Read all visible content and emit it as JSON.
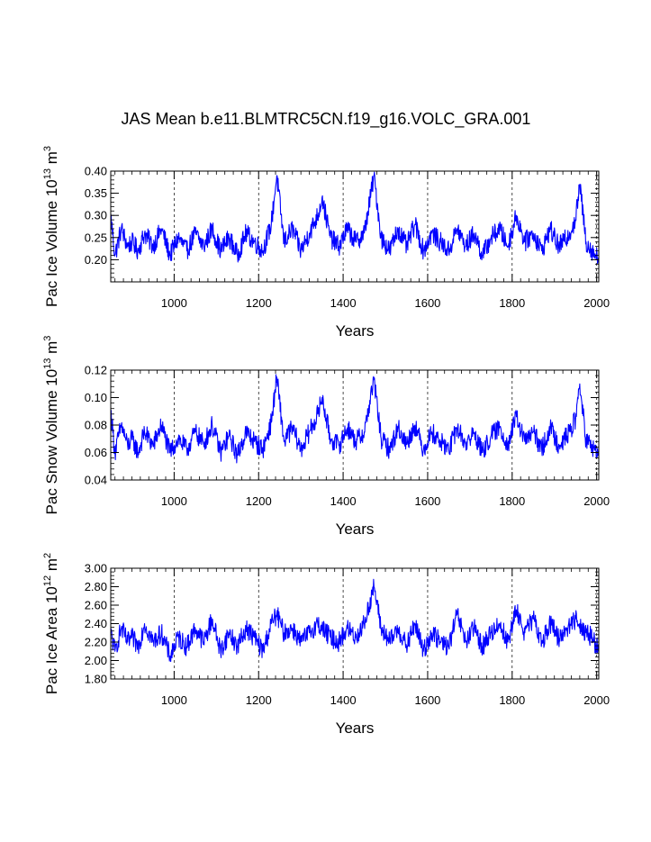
{
  "figure": {
    "title": "JAS Mean b.e11.BLMTRC5CN.f19_g16.VOLC_GRA.001"
  },
  "chart_data": [
    {
      "type": "line",
      "title": "",
      "xlabel": "Years",
      "ylabel": "Pac Ice Volume 10",
      "ylabel_exp": "13",
      "ylabel_unit": " m",
      "ylabel_unit_exp": "3",
      "xlim": [
        850,
        2005
      ],
      "ylim": [
        0.15,
        0.4
      ],
      "xticks": [
        1000,
        1200,
        1400,
        1600,
        1800,
        2000
      ],
      "xtick_labels": [
        "1000",
        "1200",
        "1400",
        "1600",
        "1800",
        "2000"
      ],
      "yticks": [
        0.2,
        0.25,
        0.3,
        0.35,
        0.4
      ],
      "ytick_labels": [
        "0.20",
        "0.25",
        "0.30",
        "0.35",
        "0.40"
      ],
      "grid": "vertical dashed at major x ticks",
      "series": [
        {
          "name": "Pac Ice Volume",
          "color": "#0000ff",
          "x": [
            850,
            860,
            875,
            890,
            900,
            915,
            930,
            950,
            970,
            990,
            1010,
            1030,
            1050,
            1070,
            1090,
            1110,
            1130,
            1150,
            1170,
            1190,
            1210,
            1230,
            1243,
            1260,
            1280,
            1300,
            1320,
            1340,
            1350,
            1370,
            1390,
            1410,
            1430,
            1450,
            1473,
            1490,
            1510,
            1530,
            1550,
            1570,
            1590,
            1610,
            1630,
            1650,
            1670,
            1690,
            1710,
            1730,
            1750,
            1770,
            1790,
            1810,
            1830,
            1850,
            1870,
            1890,
            1910,
            1930,
            1950,
            1960,
            1975,
            1990,
            2005
          ],
          "y": [
            0.3,
            0.21,
            0.27,
            0.23,
            0.24,
            0.22,
            0.26,
            0.23,
            0.27,
            0.21,
            0.25,
            0.22,
            0.26,
            0.23,
            0.27,
            0.22,
            0.25,
            0.21,
            0.26,
            0.24,
            0.22,
            0.28,
            0.39,
            0.24,
            0.27,
            0.22,
            0.26,
            0.3,
            0.34,
            0.25,
            0.23,
            0.27,
            0.24,
            0.26,
            0.39,
            0.25,
            0.22,
            0.27,
            0.23,
            0.28,
            0.22,
            0.26,
            0.24,
            0.22,
            0.27,
            0.23,
            0.26,
            0.21,
            0.25,
            0.27,
            0.23,
            0.3,
            0.24,
            0.26,
            0.22,
            0.27,
            0.23,
            0.25,
            0.29,
            0.37,
            0.24,
            0.22,
            0.2
          ]
        }
      ]
    },
    {
      "type": "line",
      "title": "",
      "xlabel": "Years",
      "ylabel": "Pac Snow Volume 10",
      "ylabel_exp": "13",
      "ylabel_unit": " m",
      "ylabel_unit_exp": "3",
      "xlim": [
        850,
        2005
      ],
      "ylim": [
        0.04,
        0.12
      ],
      "xticks": [
        1000,
        1200,
        1400,
        1600,
        1800,
        2000
      ],
      "xtick_labels": [
        "1000",
        "1200",
        "1400",
        "1600",
        "1800",
        "2000"
      ],
      "yticks": [
        0.04,
        0.06,
        0.08,
        0.1,
        0.12
      ],
      "ytick_labels": [
        "0.04",
        "0.06",
        "0.08",
        "0.10",
        "0.12"
      ],
      "grid": "vertical dashed at major x ticks",
      "series": [
        {
          "name": "Pac Snow Volume",
          "color": "#0000ff",
          "x": [
            850,
            860,
            875,
            890,
            900,
            915,
            930,
            950,
            970,
            990,
            1010,
            1030,
            1050,
            1070,
            1090,
            1110,
            1130,
            1150,
            1170,
            1190,
            1210,
            1230,
            1243,
            1260,
            1280,
            1300,
            1320,
            1340,
            1350,
            1370,
            1390,
            1410,
            1430,
            1450,
            1473,
            1490,
            1510,
            1530,
            1550,
            1570,
            1590,
            1610,
            1630,
            1650,
            1670,
            1690,
            1710,
            1730,
            1750,
            1770,
            1790,
            1810,
            1830,
            1850,
            1870,
            1890,
            1910,
            1930,
            1950,
            1960,
            1975,
            1990,
            2005
          ],
          "y": [
            0.09,
            0.06,
            0.08,
            0.065,
            0.07,
            0.06,
            0.075,
            0.065,
            0.08,
            0.06,
            0.07,
            0.062,
            0.075,
            0.066,
            0.08,
            0.06,
            0.072,
            0.058,
            0.075,
            0.068,
            0.062,
            0.082,
            0.115,
            0.068,
            0.078,
            0.062,
            0.075,
            0.088,
            0.1,
            0.07,
            0.065,
            0.078,
            0.068,
            0.075,
            0.113,
            0.07,
            0.062,
            0.078,
            0.066,
            0.08,
            0.062,
            0.075,
            0.068,
            0.062,
            0.078,
            0.066,
            0.074,
            0.06,
            0.072,
            0.078,
            0.066,
            0.086,
            0.068,
            0.075,
            0.062,
            0.078,
            0.066,
            0.072,
            0.084,
            0.11,
            0.068,
            0.064,
            0.058
          ]
        }
      ]
    },
    {
      "type": "line",
      "title": "",
      "xlabel": "Years",
      "ylabel": "Pac Ice Area 10",
      "ylabel_exp": "12",
      "ylabel_unit": " m",
      "ylabel_unit_exp": "2",
      "xlim": [
        850,
        2005
      ],
      "ylim": [
        1.8,
        3.0
      ],
      "xticks": [
        1000,
        1200,
        1400,
        1600,
        1800,
        2000
      ],
      "xtick_labels": [
        "1000",
        "1200",
        "1400",
        "1600",
        "1800",
        "2000"
      ],
      "yticks": [
        1.8,
        2.0,
        2.2,
        2.4,
        2.6,
        2.8,
        3.0
      ],
      "ytick_labels": [
        "1.80",
        "2.00",
        "2.20",
        "2.40",
        "2.60",
        "2.80",
        "3.00"
      ],
      "grid": "vertical dashed at major x ticks",
      "series": [
        {
          "name": "Pac Ice Area",
          "color": "#0000ff",
          "x": [
            850,
            860,
            875,
            890,
            900,
            915,
            930,
            950,
            970,
            990,
            1010,
            1030,
            1050,
            1070,
            1090,
            1110,
            1130,
            1150,
            1170,
            1190,
            1210,
            1230,
            1243,
            1260,
            1280,
            1300,
            1320,
            1340,
            1350,
            1370,
            1390,
            1410,
            1430,
            1450,
            1473,
            1490,
            1510,
            1530,
            1550,
            1570,
            1590,
            1610,
            1630,
            1650,
            1670,
            1690,
            1710,
            1730,
            1750,
            1770,
            1790,
            1810,
            1830,
            1850,
            1870,
            1890,
            1910,
            1930,
            1950,
            1960,
            1975,
            1990,
            2005
          ],
          "y": [
            2.3,
            2.1,
            2.35,
            2.2,
            2.25,
            2.15,
            2.4,
            2.2,
            2.3,
            2.05,
            2.25,
            2.15,
            2.35,
            2.2,
            2.45,
            2.1,
            2.3,
            2.15,
            2.35,
            2.25,
            2.1,
            2.4,
            2.5,
            2.3,
            2.35,
            2.2,
            2.3,
            2.4,
            2.35,
            2.25,
            2.2,
            2.35,
            2.25,
            2.4,
            2.8,
            2.35,
            2.2,
            2.35,
            2.15,
            2.4,
            2.1,
            2.3,
            2.2,
            2.15,
            2.5,
            2.2,
            2.35,
            2.15,
            2.3,
            2.4,
            2.2,
            2.55,
            2.3,
            2.45,
            2.2,
            2.4,
            2.25,
            2.35,
            2.45,
            2.4,
            2.3,
            2.25,
            2.1
          ]
        }
      ]
    }
  ]
}
